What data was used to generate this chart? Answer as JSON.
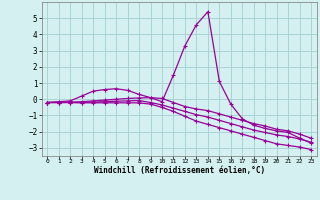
{
  "xlabel": "Windchill (Refroidissement éolien,°C)",
  "background_color": "#d4f0f0",
  "grid_color": "#aad4d4",
  "line_color": "#990099",
  "xlim": [
    -0.5,
    23.5
  ],
  "ylim": [
    -3.5,
    6.0
  ],
  "x_ticks": [
    0,
    1,
    2,
    3,
    4,
    5,
    6,
    7,
    8,
    9,
    10,
    11,
    12,
    13,
    14,
    15,
    16,
    17,
    18,
    19,
    20,
    21,
    22,
    23
  ],
  "y_ticks": [
    -3,
    -2,
    -1,
    0,
    1,
    2,
    3,
    4,
    5
  ],
  "line1_x": [
    0,
    1,
    2,
    3,
    4,
    5,
    6,
    7,
    8,
    9,
    10,
    11,
    12,
    13,
    14,
    15,
    16,
    17,
    18,
    19,
    20,
    21,
    22,
    23
  ],
  "line1_y": [
    -0.2,
    -0.15,
    -0.1,
    0.2,
    0.5,
    0.6,
    0.65,
    0.55,
    0.3,
    0.1,
    -0.15,
    1.5,
    3.3,
    4.6,
    5.4,
    1.1,
    -0.3,
    -1.2,
    -1.6,
    -1.8,
    -1.95,
    -2.05,
    -2.4,
    -2.7
  ],
  "line2_x": [
    0,
    1,
    2,
    3,
    4,
    5,
    6,
    7,
    8,
    9,
    10,
    11,
    12,
    13,
    14,
    15,
    16,
    17,
    18,
    19,
    20,
    21,
    22,
    23
  ],
  "line2_y": [
    -0.2,
    -0.2,
    -0.18,
    -0.15,
    -0.1,
    -0.05,
    0.0,
    0.05,
    0.08,
    0.1,
    0.05,
    -0.2,
    -0.45,
    -0.6,
    -0.7,
    -0.9,
    -1.1,
    -1.3,
    -1.5,
    -1.65,
    -1.85,
    -1.95,
    -2.15,
    -2.4
  ],
  "line3_x": [
    0,
    1,
    2,
    3,
    4,
    5,
    6,
    7,
    8,
    9,
    10,
    11,
    12,
    13,
    14,
    15,
    16,
    17,
    18,
    19,
    20,
    21,
    22,
    23
  ],
  "line3_y": [
    -0.2,
    -0.2,
    -0.2,
    -0.22,
    -0.22,
    -0.22,
    -0.22,
    -0.22,
    -0.22,
    -0.3,
    -0.5,
    -0.75,
    -1.05,
    -1.35,
    -1.55,
    -1.75,
    -1.95,
    -2.15,
    -2.35,
    -2.55,
    -2.75,
    -2.85,
    -2.95,
    -3.1
  ],
  "line4_x": [
    0,
    1,
    2,
    3,
    4,
    5,
    6,
    7,
    8,
    9,
    10,
    11,
    12,
    13,
    14,
    15,
    16,
    17,
    18,
    19,
    20,
    21,
    22,
    23
  ],
  "line4_y": [
    -0.2,
    -0.2,
    -0.2,
    -0.2,
    -0.18,
    -0.15,
    -0.12,
    -0.1,
    -0.08,
    -0.2,
    -0.35,
    -0.55,
    -0.75,
    -0.95,
    -1.1,
    -1.3,
    -1.5,
    -1.7,
    -1.9,
    -2.05,
    -2.2,
    -2.3,
    -2.45,
    -2.65
  ]
}
